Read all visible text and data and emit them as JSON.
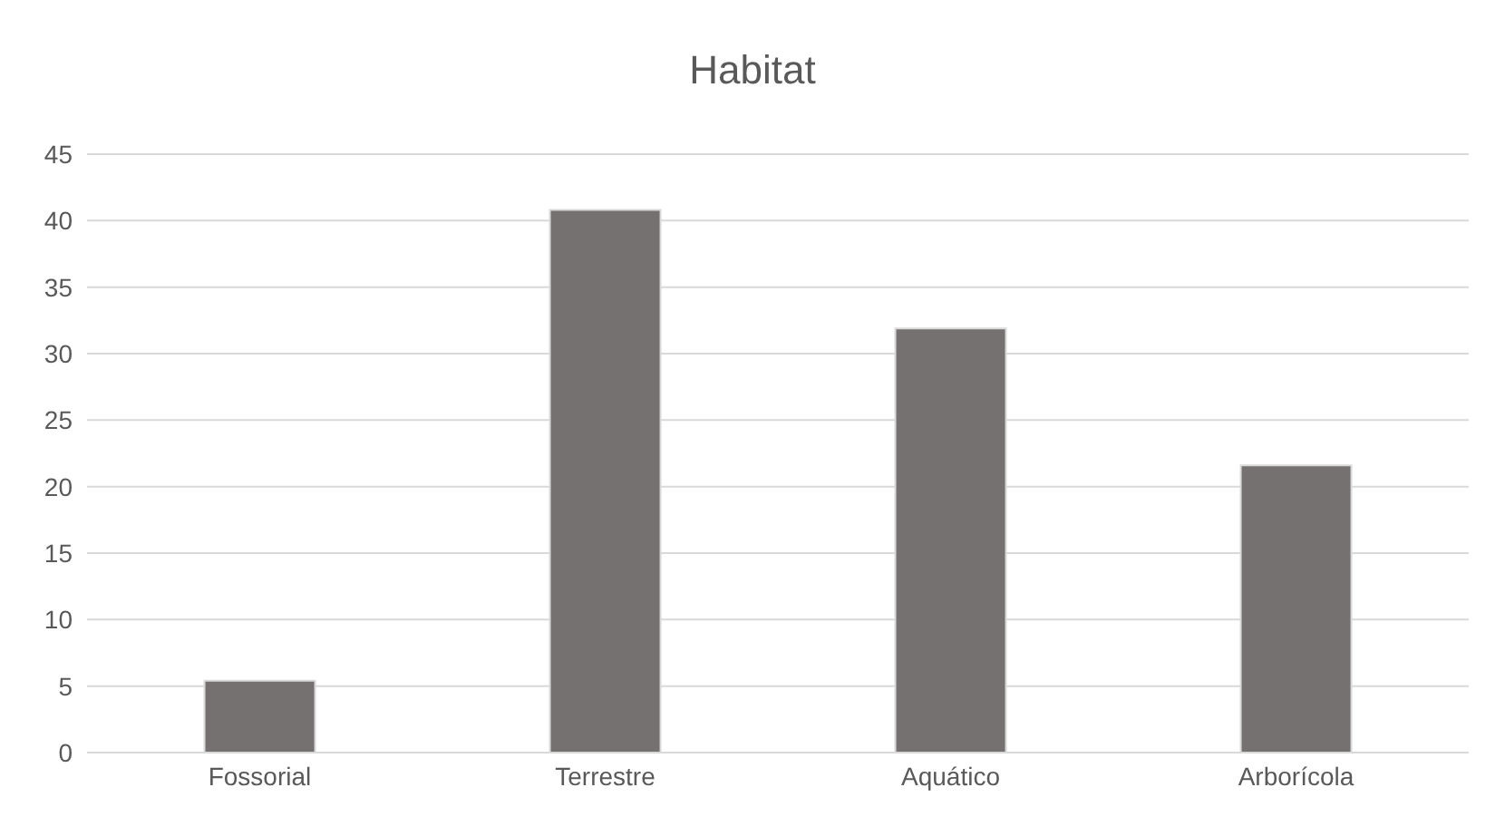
{
  "chart_data": {
    "type": "bar",
    "title": "Habitat",
    "categories": [
      "Fossorial",
      "Terrestre",
      "Aquático",
      "Arborícola"
    ],
    "values": [
      5.4,
      40.8,
      31.9,
      21.6
    ],
    "color": "#767171",
    "ylim": [
      0,
      45
    ],
    "yticks": [
      0,
      5,
      10,
      15,
      20,
      25,
      30,
      35,
      40,
      45
    ],
    "grid": "y"
  }
}
